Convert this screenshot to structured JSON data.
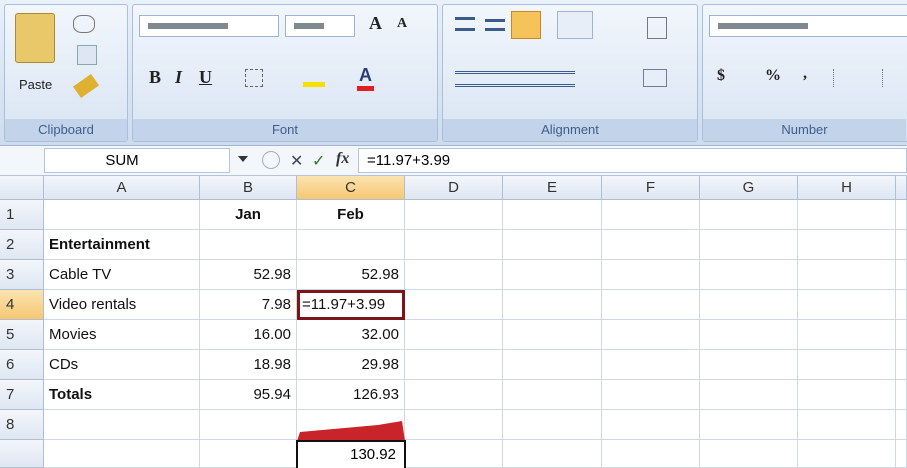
{
  "ribbon": {
    "paste_label": "Paste",
    "groups": [
      "Clipboard",
      "Font",
      "Alignment",
      "Number"
    ],
    "font_buttons": [
      "B",
      "I",
      "U"
    ],
    "font_size_buttons": [
      "A",
      "A"
    ],
    "color_button": "A",
    "number_buttons": [
      "$",
      "%",
      ","
    ]
  },
  "formula_bar": {
    "name_box": "SUM",
    "fx_label": "fx",
    "formula": "=11.97+3.99"
  },
  "sheet": {
    "columns": [
      "A",
      "B",
      "C",
      "D",
      "E",
      "F",
      "G",
      "H"
    ],
    "row_numbers": [
      1,
      2,
      3,
      4,
      5,
      6,
      7,
      8
    ],
    "rows": [
      [
        null,
        "Jan",
        "Feb"
      ],
      [
        "Entertainment",
        null,
        null
      ],
      [
        "Cable TV",
        "52.98",
        "52.98"
      ],
      [
        "Video rentals",
        "7.98",
        "=11.97+3.99"
      ],
      [
        "Movies",
        "16.00",
        "32.00"
      ],
      [
        "CDs",
        "18.98",
        "29.98"
      ],
      [
        "Totals",
        "95.94",
        "126.93"
      ],
      [
        null,
        null,
        null
      ]
    ],
    "result_popup": "130.92"
  }
}
